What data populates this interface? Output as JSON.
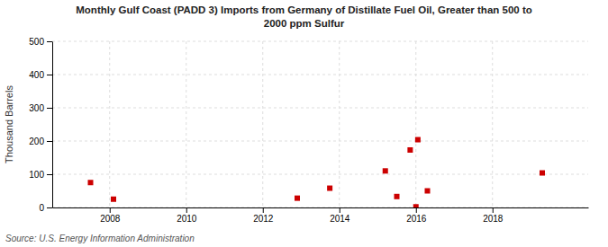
{
  "chart_data": {
    "type": "scatter",
    "title": "Monthly Gulf Coast (PADD 3) Imports from Germany of Distillate Fuel Oil, Greater than 500 to\n2000 ppm Sulfur",
    "ylabel": "Thousand Barrels",
    "source": "Source: U.S. Energy Information Administration",
    "x": [
      2007.5,
      2008.1,
      2012.9,
      2013.75,
      2015.2,
      2015.5,
      2015.85,
      2016.05,
      2016.0,
      2016.3,
      2019.3
    ],
    "values": [
      75,
      25,
      28,
      58,
      110,
      33,
      173,
      204,
      2,
      50,
      104
    ],
    "color": "#cc0000",
    "marker": "square",
    "xlim": [
      2006.5,
      2020.5
    ],
    "ylim": [
      0,
      500
    ],
    "xticks": [
      2008,
      2010,
      2012,
      2014,
      2016,
      2018
    ],
    "yticks": [
      0,
      100,
      200,
      300,
      400,
      500
    ],
    "grid": true
  }
}
